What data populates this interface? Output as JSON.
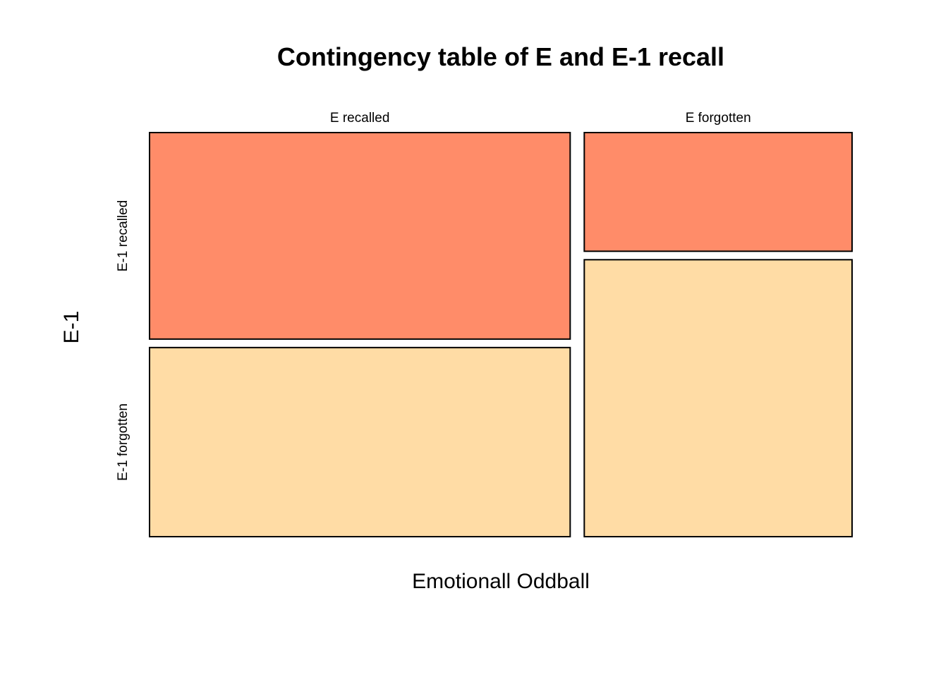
{
  "chart_data": {
    "type": "mosaic",
    "title": "Contingency table of E and E-1 recall",
    "xlabel": "Emotionall Oddball",
    "ylabel": "E-1",
    "x_categories": [
      "E recalled",
      "E forgotten"
    ],
    "y_categories": [
      "E-1 recalled",
      "E-1 forgotten"
    ],
    "x_proportions": [
      0.611,
      0.389
    ],
    "conditional_proportions": [
      [
        0.522,
        0.478
      ],
      [
        0.3,
        0.7
      ]
    ],
    "colors": [
      "#FF8C69",
      "#FFDCA5"
    ],
    "legend": "none",
    "grid": false
  }
}
